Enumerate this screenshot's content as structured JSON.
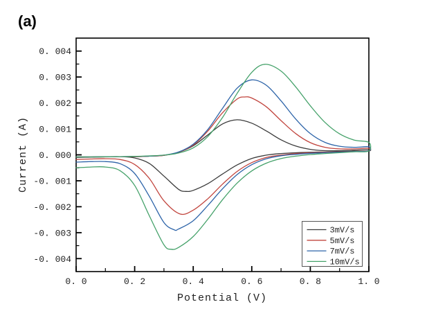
{
  "figure_label": "(a)",
  "chart_data": {
    "type": "line",
    "title": "",
    "xlabel": "Potential (V)",
    "ylabel": "Current (A)",
    "xlim": [
      0.0,
      1.0
    ],
    "ylim": [
      -0.0045,
      0.0045
    ],
    "grid": false,
    "frame_color": "#000000",
    "x_axis": {
      "major_ticks": [
        {
          "value": 0.0,
          "label": "0. 0"
        },
        {
          "value": 0.2,
          "label": "0. 2"
        },
        {
          "value": 0.4,
          "label": "0. 4"
        },
        {
          "value": 0.6,
          "label": "0. 6"
        },
        {
          "value": 0.8,
          "label": "0. 8"
        },
        {
          "value": 1.0,
          "label": "1. 0"
        }
      ],
      "minor_ticks": [
        0.1,
        0.3,
        0.5,
        0.7,
        0.9
      ]
    },
    "y_axis": {
      "major_ticks": [
        {
          "value": 0.004,
          "label": "0. 004"
        },
        {
          "value": 0.003,
          "label": "0. 003"
        },
        {
          "value": 0.002,
          "label": "0. 002"
        },
        {
          "value": 0.001,
          "label": "0. 001"
        },
        {
          "value": 0.0,
          "label": "0. 000"
        },
        {
          "value": -0.001,
          "label": "-0. 001"
        },
        {
          "value": -0.002,
          "label": "-0. 002"
        },
        {
          "value": -0.003,
          "label": "-0. 003"
        },
        {
          "value": -0.004,
          "label": "-0. 004"
        }
      ],
      "minor_ticks": [
        0.0035,
        0.0025,
        0.0015,
        0.0005,
        -0.0005,
        -0.0015,
        -0.0025,
        -0.0035
      ]
    },
    "legend": {
      "position": "bottom-right",
      "entries": [
        {
          "label": "3mV/s",
          "color": "#3a3a3a"
        },
        {
          "label": "5mV/s",
          "color": "#c1443d"
        },
        {
          "label": "7mV/s",
          "color": "#2c63a8"
        },
        {
          "label": "10mV/s",
          "color": "#44a169"
        }
      ]
    },
    "series": [
      {
        "name": "3mV/s",
        "color": "#3a3a3a",
        "anodic_peak": {
          "x": 0.55,
          "y": 0.00135
        },
        "cathodic_peak": {
          "x": 0.375,
          "y": -0.00141
        },
        "points": [
          [
            0,
            -8e-05
          ],
          [
            0.05,
            -8e-05
          ],
          [
            0.1,
            -7e-05
          ],
          [
            0.15,
            -7e-05
          ],
          [
            0.2,
            -7e-05
          ],
          [
            0.25,
            -5e-05
          ],
          [
            0.3,
            -2e-05
          ],
          [
            0.35,
            0.0001
          ],
          [
            0.4,
            0.00035
          ],
          [
            0.45,
            0.00077
          ],
          [
            0.5,
            0.00119
          ],
          [
            0.55,
            0.00135
          ],
          [
            0.6,
            0.00122
          ],
          [
            0.65,
            0.00092
          ],
          [
            0.7,
            0.00058
          ],
          [
            0.75,
            0.00034
          ],
          [
            0.8,
            0.00021
          ],
          [
            0.85,
            0.00016
          ],
          [
            0.9,
            0.00016
          ],
          [
            0.95,
            0.00018
          ],
          [
            1,
            0.0002
          ],
          [
            1,
            0.00015
          ],
          [
            0.95,
            0.00014
          ],
          [
            0.9,
            0.000125
          ],
          [
            0.85,
            0.00011
          ],
          [
            0.8,
            0.0001
          ],
          [
            0.75,
            8e-05
          ],
          [
            0.7,
            5e-05
          ],
          [
            0.65,
            -1e-05
          ],
          [
            0.6,
            -0.00014
          ],
          [
            0.55,
            -0.00039
          ],
          [
            0.5,
            -0.00074
          ],
          [
            0.45,
            -0.00111
          ],
          [
            0.4,
            -0.00137
          ],
          [
            0.375,
            -0.00141
          ],
          [
            0.35,
            -0.00133
          ],
          [
            0.3,
            -0.00082
          ],
          [
            0.25,
            -0.00033
          ],
          [
            0.2,
            -0.00012
          ],
          [
            0.15,
            -7e-05
          ],
          [
            0.1,
            -7.5e-05
          ],
          [
            0.05,
            -9e-05
          ],
          [
            0,
            -0.0001
          ]
        ]
      },
      {
        "name": "5mV/s",
        "color": "#c1443d",
        "anodic_peak": {
          "x": 0.575,
          "y": 0.00223
        },
        "cathodic_peak": {
          "x": 0.355,
          "y": -0.00228
        },
        "points": [
          [
            0,
            -8e-05
          ],
          [
            0.05,
            -8e-05
          ],
          [
            0.1,
            -8e-05
          ],
          [
            0.15,
            -7e-05
          ],
          [
            0.2,
            -7e-05
          ],
          [
            0.25,
            -5e-05
          ],
          [
            0.3,
            -2e-05
          ],
          [
            0.35,
            0.0001
          ],
          [
            0.4,
            0.00038
          ],
          [
            0.45,
            0.00092
          ],
          [
            0.5,
            0.00162
          ],
          [
            0.55,
            0.00215
          ],
          [
            0.575,
            0.00223
          ],
          [
            0.6,
            0.00219
          ],
          [
            0.65,
            0.00185
          ],
          [
            0.7,
            0.00132
          ],
          [
            0.75,
            0.00082
          ],
          [
            0.8,
            0.00047
          ],
          [
            0.85,
            0.00029
          ],
          [
            0.9,
            0.00023
          ],
          [
            0.95,
            0.00023
          ],
          [
            1,
            0.00025
          ],
          [
            1,
            0.00015
          ],
          [
            0.95,
            0.000134
          ],
          [
            0.9,
            0.000117
          ],
          [
            0.85,
            0.0001
          ],
          [
            0.8,
            8e-05
          ],
          [
            0.75,
            5e-05
          ],
          [
            0.7,
            -1e-05
          ],
          [
            0.65,
            -0.0001
          ],
          [
            0.6,
            -0.0003
          ],
          [
            0.55,
            -0.00064
          ],
          [
            0.5,
            -0.00113
          ],
          [
            0.45,
            -0.00169
          ],
          [
            0.4,
            -0.00213
          ],
          [
            0.355,
            -0.00228
          ],
          [
            0.3,
            -0.00177
          ],
          [
            0.25,
            -0.00091
          ],
          [
            0.2,
            -0.00037
          ],
          [
            0.15,
            -0.00018
          ],
          [
            0.1,
            -0.00015
          ],
          [
            0.05,
            -0.00016
          ],
          [
            0,
            -0.00018
          ]
        ]
      },
      {
        "name": "7mV/s",
        "color": "#2c63a8",
        "anodic_peak": {
          "x": 0.6,
          "y": 0.00289
        },
        "cathodic_peak": {
          "x": 0.335,
          "y": -0.00289
        },
        "points": [
          [
            0,
            -8e-05
          ],
          [
            0.05,
            -8e-05
          ],
          [
            0.1,
            -7.6e-05
          ],
          [
            0.15,
            -7e-05
          ],
          [
            0.2,
            -6e-05
          ],
          [
            0.25,
            -5e-05
          ],
          [
            0.3,
            -1e-05
          ],
          [
            0.35,
            0.00011
          ],
          [
            0.4,
            0.00041
          ],
          [
            0.45,
            0.00098
          ],
          [
            0.5,
            0.00179
          ],
          [
            0.55,
            0.00257
          ],
          [
            0.6,
            0.00289
          ],
          [
            0.65,
            0.00268
          ],
          [
            0.7,
            0.00208
          ],
          [
            0.75,
            0.00138
          ],
          [
            0.8,
            0.00082
          ],
          [
            0.85,
            0.00048
          ],
          [
            0.9,
            0.00033
          ],
          [
            0.95,
            0.00029
          ],
          [
            1,
            0.00031
          ],
          [
            1,
            0.00015
          ],
          [
            0.95,
            0.000129
          ],
          [
            0.9,
            0.000107
          ],
          [
            0.85,
            8.4e-05
          ],
          [
            0.8,
            5.9e-05
          ],
          [
            0.75,
            2e-05
          ],
          [
            0.7,
            -3.5e-05
          ],
          [
            0.65,
            -0.00015
          ],
          [
            0.6,
            -0.00038
          ],
          [
            0.55,
            -0.00076
          ],
          [
            0.5,
            -0.00131
          ],
          [
            0.45,
            -0.00195
          ],
          [
            0.4,
            -0.00254
          ],
          [
            0.35,
            -0.00286
          ],
          [
            0.335,
            -0.00289
          ],
          [
            0.3,
            -0.00261
          ],
          [
            0.25,
            -0.0016
          ],
          [
            0.2,
            -0.00072
          ],
          [
            0.15,
            -0.00034
          ],
          [
            0.1,
            -0.00026
          ],
          [
            0.05,
            -0.00026
          ],
          [
            0,
            -0.00028
          ]
        ]
      },
      {
        "name": "10mV/s",
        "color": "#44a169",
        "anodic_peak": {
          "x": 0.645,
          "y": 0.00349
        },
        "cathodic_peak": {
          "x": 0.325,
          "y": -0.00364
        },
        "points": [
          [
            0,
            -8e-05
          ],
          [
            0.05,
            -8e-05
          ],
          [
            0.1,
            -7.5e-05
          ],
          [
            0.15,
            -7e-05
          ],
          [
            0.2,
            -6e-05
          ],
          [
            0.25,
            -4e-05
          ],
          [
            0.3,
            -1e-05
          ],
          [
            0.35,
            7e-05
          ],
          [
            0.4,
            0.00027
          ],
          [
            0.45,
            0.00071
          ],
          [
            0.5,
            0.00144
          ],
          [
            0.55,
            0.00237
          ],
          [
            0.6,
            0.00318
          ],
          [
            0.645,
            0.00349
          ],
          [
            0.7,
            0.00323
          ],
          [
            0.75,
            0.00262
          ],
          [
            0.8,
            0.00189
          ],
          [
            0.85,
            0.00125
          ],
          [
            0.9,
            0.00081
          ],
          [
            0.95,
            0.00057
          ],
          [
            1,
            0.00048
          ],
          [
            1,
            0.00015
          ],
          [
            0.95,
            0.000117
          ],
          [
            0.9,
            8.4e-05
          ],
          [
            0.85,
            5e-05
          ],
          [
            0.8,
            1e-05
          ],
          [
            0.75,
            -5e-05
          ],
          [
            0.7,
            -0.000145
          ],
          [
            0.65,
            -0.00032
          ],
          [
            0.6,
            -0.00062
          ],
          [
            0.55,
            -0.00109
          ],
          [
            0.5,
            -0.00173
          ],
          [
            0.45,
            -0.00248
          ],
          [
            0.4,
            -0.00315
          ],
          [
            0.35,
            -0.00357
          ],
          [
            0.325,
            -0.00364
          ],
          [
            0.3,
            -0.00347
          ],
          [
            0.25,
            -0.00235
          ],
          [
            0.2,
            -0.00118
          ],
          [
            0.15,
            -0.00061
          ],
          [
            0.1,
            -0.00047
          ],
          [
            0.05,
            -0.00047
          ],
          [
            0,
            -0.0005
          ]
        ]
      }
    ]
  }
}
